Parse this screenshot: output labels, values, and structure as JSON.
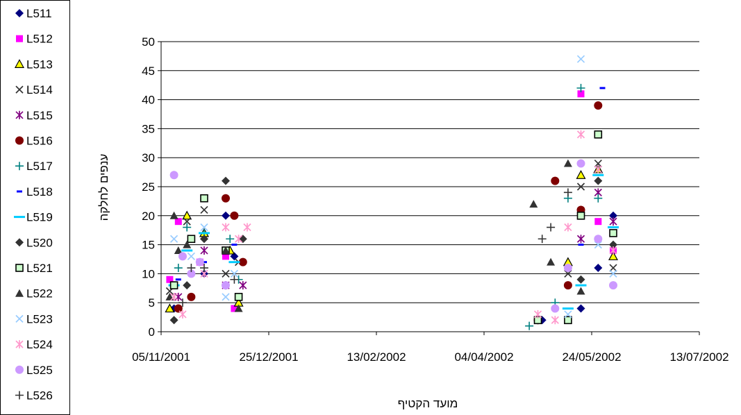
{
  "chart_data": {
    "type": "scatter",
    "title": "",
    "xlabel": "מועד הקטיף",
    "ylabel": "ענפים לחלקה",
    "x_axis_type": "date",
    "xlim": [
      "05/11/2001",
      "13/07/2002"
    ],
    "ylim": [
      0,
      50
    ],
    "x_ticks": [
      "05/11/2001",
      "25/12/2001",
      "13/02/2002",
      "04/04/2002",
      "24/05/2002",
      "13/07/2002"
    ],
    "y_ticks": [
      "0",
      "5",
      "10",
      "15",
      "20",
      "25",
      "30",
      "35",
      "40",
      "45",
      "50"
    ],
    "grid": "horizontal",
    "legend_position": "left",
    "series": [
      {
        "name": "L511",
        "marker": "diamond",
        "color": "#000080",
        "points": [
          [
            "11/11/2001",
            4
          ],
          [
            "25/11/2001",
            10
          ],
          [
            "05/12/2001",
            20
          ],
          [
            "09/12/2001",
            13
          ],
          [
            "01/05/2002",
            2
          ],
          [
            "19/05/2002",
            4
          ],
          [
            "27/05/2002",
            11
          ],
          [
            "03/06/2002",
            20
          ]
        ]
      },
      {
        "name": "L512",
        "marker": "square",
        "color": "#FF00FF",
        "points": [
          [
            "09/11/2001",
            9
          ],
          [
            "13/11/2001",
            19
          ],
          [
            "23/11/2001",
            12
          ],
          [
            "05/12/2001",
            13
          ],
          [
            "09/12/2001",
            4
          ],
          [
            "13/05/2002",
            11
          ],
          [
            "19/05/2002",
            41
          ],
          [
            "27/05/2002",
            19
          ],
          [
            "03/06/2002",
            14
          ]
        ]
      },
      {
        "name": "L513",
        "marker": "triangle",
        "color": "#FFFF00",
        "points": [
          [
            "09/11/2001",
            4
          ],
          [
            "17/11/2001",
            20
          ],
          [
            "25/11/2001",
            17
          ],
          [
            "07/12/2001",
            14
          ],
          [
            "11/12/2001",
            5
          ],
          [
            "13/05/2002",
            12
          ],
          [
            "19/05/2002",
            27
          ],
          [
            "27/05/2002",
            28
          ],
          [
            "03/06/2002",
            13
          ]
        ]
      },
      {
        "name": "L514",
        "marker": "x",
        "color": "#333333",
        "points": [
          [
            "09/11/2001",
            7
          ],
          [
            "17/11/2001",
            19
          ],
          [
            "25/11/2001",
            21
          ],
          [
            "05/12/2001",
            10
          ],
          [
            "11/12/2001",
            12
          ],
          [
            "13/05/2002",
            10
          ],
          [
            "19/05/2002",
            25
          ],
          [
            "27/05/2002",
            29
          ],
          [
            "03/06/2002",
            11
          ]
        ]
      },
      {
        "name": "L515",
        "marker": "asterisk",
        "color": "#800080",
        "points": [
          [
            "13/11/2001",
            6
          ],
          [
            "25/11/2001",
            14
          ],
          [
            "05/12/2001",
            8
          ],
          [
            "13/12/2001",
            8
          ],
          [
            "19/05/2002",
            16
          ],
          [
            "27/05/2002",
            24
          ],
          [
            "03/06/2002",
            19
          ]
        ]
      },
      {
        "name": "L516",
        "marker": "circle",
        "color": "#800000",
        "points": [
          [
            "13/11/2001",
            4
          ],
          [
            "19/11/2001",
            6
          ],
          [
            "05/12/2001",
            23
          ],
          [
            "09/12/2001",
            20
          ],
          [
            "13/12/2001",
            12
          ],
          [
            "29/04/2002",
            2
          ],
          [
            "07/05/2002",
            26
          ],
          [
            "13/05/2002",
            8
          ],
          [
            "19/05/2002",
            21
          ],
          [
            "27/05/2002",
            39
          ]
        ]
      },
      {
        "name": "L517",
        "marker": "plus",
        "color": "#008080",
        "points": [
          [
            "13/11/2001",
            11
          ],
          [
            "17/11/2001",
            18
          ],
          [
            "25/11/2001",
            17
          ],
          [
            "07/12/2001",
            16
          ],
          [
            "11/12/2001",
            9
          ],
          [
            "25/04/2002",
            1
          ],
          [
            "07/05/2002",
            5
          ],
          [
            "13/05/2002",
            23
          ],
          [
            "19/05/2002",
            42
          ],
          [
            "27/05/2002",
            23
          ]
        ]
      },
      {
        "name": "L518",
        "marker": "dash",
        "color": "#0000FF",
        "points": [
          [
            "13/11/2001",
            9
          ],
          [
            "17/11/2001",
            14
          ],
          [
            "25/11/2001",
            12
          ],
          [
            "09/12/2001",
            15
          ],
          [
            "19/05/2002",
            15
          ],
          [
            "29/05/2002",
            42
          ]
        ]
      },
      {
        "name": "L519",
        "marker": "bar",
        "color": "#00CCFF",
        "points": [
          [
            "11/11/2001",
            8
          ],
          [
            "17/11/2001",
            14
          ],
          [
            "25/11/2001",
            17
          ],
          [
            "09/12/2001",
            12
          ],
          [
            "13/05/2002",
            4
          ],
          [
            "19/05/2002",
            8
          ],
          [
            "27/05/2002",
            27
          ],
          [
            "03/06/2002",
            18
          ]
        ]
      },
      {
        "name": "L520",
        "marker": "diamond",
        "color": "#333333",
        "points": [
          [
            "11/11/2001",
            2
          ],
          [
            "17/11/2001",
            8
          ],
          [
            "25/11/2001",
            16
          ],
          [
            "05/12/2001",
            26
          ],
          [
            "13/12/2001",
            16
          ],
          [
            "19/05/2002",
            9
          ],
          [
            "27/05/2002",
            26
          ],
          [
            "03/06/2002",
            15
          ]
        ]
      },
      {
        "name": "L521",
        "marker": "square-open",
        "color": "#CCFFCC",
        "points": [
          [
            "11/11/2001",
            8
          ],
          [
            "19/11/2001",
            16
          ],
          [
            "25/11/2001",
            23
          ],
          [
            "05/12/2001",
            14
          ],
          [
            "11/12/2001",
            6
          ],
          [
            "29/04/2002",
            2
          ],
          [
            "13/05/2002",
            2
          ],
          [
            "19/05/2002",
            20
          ],
          [
            "27/05/2002",
            34
          ],
          [
            "03/06/2002",
            17
          ]
        ]
      },
      {
        "name": "L522",
        "marker": "triangle",
        "color": "#333333",
        "points": [
          [
            "09/11/2001",
            6
          ],
          [
            "11/11/2001",
            20
          ],
          [
            "13/11/2001",
            14
          ],
          [
            "17/11/2001",
            15
          ],
          [
            "05/12/2001",
            14
          ],
          [
            "11/12/2001",
            4
          ],
          [
            "27/04/2002",
            22
          ],
          [
            "05/05/2002",
            12
          ],
          [
            "13/05/2002",
            29
          ],
          [
            "19/05/2002",
            7
          ]
        ]
      },
      {
        "name": "L523",
        "marker": "x",
        "color": "#99CCFF",
        "points": [
          [
            "11/11/2001",
            16
          ],
          [
            "19/11/2001",
            13
          ],
          [
            "25/11/2001",
            18
          ],
          [
            "05/12/2001",
            6
          ],
          [
            "09/12/2001",
            10
          ],
          [
            "13/05/2002",
            3
          ],
          [
            "19/05/2002",
            47
          ],
          [
            "27/05/2002",
            15
          ],
          [
            "03/06/2002",
            10
          ]
        ]
      },
      {
        "name": "L524",
        "marker": "asterisk",
        "color": "#FF99CC",
        "points": [
          [
            "11/11/2001",
            6
          ],
          [
            "15/11/2001",
            3
          ],
          [
            "25/11/2001",
            10
          ],
          [
            "05/12/2001",
            18
          ],
          [
            "11/12/2001",
            16
          ],
          [
            "15/12/2001",
            18
          ],
          [
            "29/04/2002",
            3
          ],
          [
            "07/05/2002",
            2
          ],
          [
            "13/05/2002",
            18
          ],
          [
            "19/05/2002",
            34
          ],
          [
            "27/05/2002",
            28
          ],
          [
            "03/06/2002",
            14
          ]
        ]
      },
      {
        "name": "L525",
        "marker": "circle",
        "color": "#CC99FF",
        "points": [
          [
            "11/11/2001",
            27
          ],
          [
            "15/11/2001",
            13
          ],
          [
            "19/11/2001",
            10
          ],
          [
            "23/11/2001",
            12
          ],
          [
            "05/12/2001",
            8
          ],
          [
            "07/05/2002",
            4
          ],
          [
            "13/05/2002",
            11
          ],
          [
            "19/05/2002",
            29
          ],
          [
            "27/05/2002",
            16
          ],
          [
            "03/06/2002",
            8
          ]
        ]
      },
      {
        "name": "L526",
        "marker": "plus",
        "color": "#333333",
        "points": [
          [
            "15/11/2001",
            5
          ],
          [
            "19/11/2001",
            11
          ],
          [
            "25/11/2001",
            11
          ],
          [
            "09/12/2001",
            9
          ],
          [
            "01/05/2002",
            16
          ],
          [
            "05/05/2002",
            18
          ],
          [
            "13/05/2002",
            24
          ]
        ]
      }
    ]
  }
}
